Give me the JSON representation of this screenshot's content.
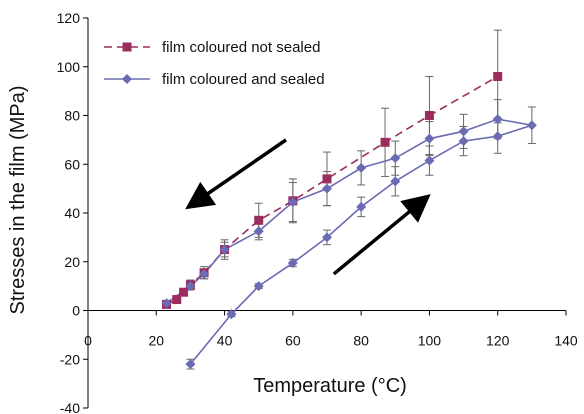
{
  "chart_data": {
    "type": "line",
    "xlabel": "Temperature (°C)",
    "ylabel": "Stresses in the film (MPa)",
    "xlim": [
      0,
      140
    ],
    "ylim": [
      -40,
      120
    ],
    "xticks": [
      0,
      20,
      40,
      60,
      80,
      100,
      120,
      140
    ],
    "yticks": [
      -40,
      -20,
      0,
      20,
      40,
      60,
      80,
      100,
      120
    ],
    "grid": false,
    "legend_position": "top-left",
    "series": [
      {
        "name": "film coloured not sealed",
        "color": "#9b2d5e",
        "marker": "square",
        "line_style": "dashed",
        "x": [
          23,
          26,
          28,
          30,
          34,
          40,
          50,
          60,
          70,
          87,
          100,
          120
        ],
        "y": [
          2.5,
          4.5,
          7.5,
          10.5,
          15.5,
          25,
          37,
          45,
          54,
          69,
          80,
          96
        ],
        "error": [
          1,
          1,
          1.5,
          2,
          2.5,
          4,
          7,
          9,
          11,
          14,
          16,
          19
        ]
      },
      {
        "name": "film coloured and sealed",
        "color": "#6b6bb3",
        "marker": "diamond",
        "line_style": "solid",
        "x": [
          23,
          30,
          34,
          40,
          50,
          60,
          70,
          80,
          90,
          100,
          110,
          120,
          130,
          120,
          110,
          100,
          90,
          80,
          70,
          60,
          50,
          42,
          30
        ],
        "y": [
          3,
          10,
          15,
          25,
          32.5,
          44.5,
          50,
          58.5,
          62.5,
          70.5,
          73.5,
          78.5,
          76,
          71.5,
          69.5,
          61.5,
          53,
          42.5,
          30,
          19.5,
          10,
          -1.5,
          -22
        ],
        "error": [
          1,
          1.5,
          2,
          3,
          3.5,
          8,
          7,
          7,
          7,
          7,
          7,
          8,
          7.5,
          7,
          6,
          6,
          6,
          4,
          3,
          1.5,
          1,
          1,
          2
        ]
      }
    ],
    "annotations": [
      {
        "type": "arrow",
        "from": [
          58,
          70
        ],
        "to": [
          31,
          44
        ]
      },
      {
        "type": "arrow",
        "from": [
          72,
          15
        ],
        "to": [
          98,
          45
        ]
      }
    ]
  }
}
